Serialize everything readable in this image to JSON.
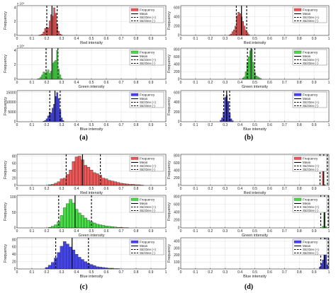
{
  "legend_labels": {
    "freq": "Frequency",
    "mean": "Mean",
    "plus": "Std Dev (+)",
    "minus": "Std Dev (-)"
  },
  "chart_data": [
    {
      "panel": "(a)",
      "type": "bar",
      "title": "",
      "xlabel": "Red intensity",
      "ylabel": "Frequency",
      "color": "#ee5555",
      "xlim": [
        0,
        1
      ],
      "yticks": [
        "0",
        "2",
        "4"
      ],
      "ytick_values": [
        0,
        2,
        4
      ],
      "ylim": [
        0,
        4.3
      ],
      "exponent": "x 10⁴",
      "mean": 0.235,
      "std_minus": 0.2,
      "std_plus": 0.27,
      "bins": [
        [
          0.15,
          0.05
        ],
        [
          0.16,
          0.1
        ],
        [
          0.17,
          0.2
        ],
        [
          0.18,
          0.5
        ],
        [
          0.19,
          1.0
        ],
        [
          0.2,
          1.2
        ],
        [
          0.21,
          1.1
        ],
        [
          0.22,
          2.1
        ],
        [
          0.23,
          3.0
        ],
        [
          0.24,
          2.8
        ],
        [
          0.25,
          4.0
        ],
        [
          0.26,
          3.2
        ],
        [
          0.27,
          1.6
        ],
        [
          0.28,
          0.6
        ],
        [
          0.29,
          0.2
        ],
        [
          0.3,
          0.05
        ]
      ]
    },
    {
      "panel": "(a)",
      "type": "bar",
      "title": "",
      "xlabel": "Green intensity",
      "ylabel": "Frequency",
      "color": "#44dd44",
      "xlim": [
        0,
        1
      ],
      "yticks": [
        "0",
        "2",
        "4"
      ],
      "ytick_values": [
        0,
        2,
        4
      ],
      "ylim": [
        0,
        4.3
      ],
      "exponent": "x 10⁴",
      "mean": 0.235,
      "std_minus": 0.195,
      "std_plus": 0.275,
      "bins": [
        [
          0.14,
          0.05
        ],
        [
          0.15,
          0.1
        ],
        [
          0.16,
          0.3
        ],
        [
          0.17,
          0.6
        ],
        [
          0.18,
          1.0
        ],
        [
          0.19,
          0.9
        ],
        [
          0.2,
          1.0
        ],
        [
          0.21,
          1.3
        ],
        [
          0.22,
          0.8
        ],
        [
          0.23,
          1.1
        ],
        [
          0.24,
          2.2
        ],
        [
          0.25,
          2.4
        ],
        [
          0.26,
          2.6
        ],
        [
          0.27,
          4.0
        ],
        [
          0.28,
          1.4
        ],
        [
          0.29,
          0.6
        ],
        [
          0.3,
          0.1
        ]
      ]
    },
    {
      "panel": "(a)",
      "type": "bar",
      "title": "",
      "xlabel": "Blue intensity",
      "ylabel": "Frequency",
      "color": "#4444ee",
      "xlim": [
        0,
        1
      ],
      "yticks": [
        "0",
        "5000",
        "10000",
        "15000"
      ],
      "ytick_values": [
        0,
        5000,
        10000,
        15000
      ],
      "ylim": [
        0,
        16000
      ],
      "mean": 0.255,
      "std_minus": 0.22,
      "std_plus": 0.29,
      "bins": [
        [
          0.18,
          300
        ],
        [
          0.19,
          600
        ],
        [
          0.2,
          1500
        ],
        [
          0.21,
          3000
        ],
        [
          0.22,
          5000
        ],
        [
          0.23,
          4500
        ],
        [
          0.24,
          7000
        ],
        [
          0.25,
          9000
        ],
        [
          0.26,
          13000
        ],
        [
          0.27,
          15000
        ],
        [
          0.28,
          12000
        ],
        [
          0.29,
          6000
        ],
        [
          0.3,
          2000
        ],
        [
          0.31,
          600
        ]
      ]
    },
    {
      "panel": "(b)",
      "type": "bar",
      "title": "",
      "xlabel": "Red intensity",
      "ylabel": "Frequency",
      "color": "#ee5555",
      "xlim": [
        0,
        1
      ],
      "yticks": [
        "0",
        "200",
        "400",
        "600"
      ],
      "ytick_values": [
        0,
        200,
        400,
        600
      ],
      "ylim": [
        0,
        640
      ],
      "mean": 0.41,
      "std_minus": 0.375,
      "std_plus": 0.445,
      "bins": [
        [
          0.33,
          10
        ],
        [
          0.34,
          30
        ],
        [
          0.35,
          80
        ],
        [
          0.36,
          120
        ],
        [
          0.37,
          200
        ],
        [
          0.38,
          420
        ],
        [
          0.39,
          500
        ],
        [
          0.4,
          470
        ],
        [
          0.41,
          400
        ],
        [
          0.42,
          300
        ],
        [
          0.43,
          200
        ],
        [
          0.44,
          110
        ],
        [
          0.45,
          60
        ],
        [
          0.46,
          20
        ]
      ]
    },
    {
      "panel": "(b)",
      "type": "bar",
      "title": "",
      "xlabel": "Green intensity",
      "ylabel": "Frequency",
      "color": "#44dd44",
      "xlim": [
        0,
        1
      ],
      "yticks": [
        "0",
        "200",
        "400",
        "600",
        "800"
      ],
      "ytick_values": [
        0,
        200,
        400,
        600,
        800
      ],
      "ylim": [
        0,
        830
      ],
      "mean": 0.475,
      "std_minus": 0.45,
      "std_plus": 0.5,
      "bins": [
        [
          0.42,
          30
        ],
        [
          0.43,
          60
        ],
        [
          0.44,
          200
        ],
        [
          0.45,
          450
        ],
        [
          0.46,
          600
        ],
        [
          0.47,
          760
        ],
        [
          0.48,
          800
        ],
        [
          0.49,
          450
        ],
        [
          0.5,
          180
        ],
        [
          0.51,
          90
        ],
        [
          0.52,
          60
        ],
        [
          0.53,
          40
        ],
        [
          0.54,
          20
        ]
      ]
    },
    {
      "panel": "(b)",
      "type": "bar",
      "title": "",
      "xlabel": "Blue intensity",
      "ylabel": "Frequency",
      "color": "#4444ee",
      "xlim": [
        0,
        1
      ],
      "yticks": [
        "0",
        "200",
        "400",
        "600"
      ],
      "ytick_values": [
        0,
        200,
        400,
        600
      ],
      "ylim": [
        0,
        640
      ],
      "mean": 0.31,
      "std_minus": 0.29,
      "std_plus": 0.33,
      "bins": [
        [
          0.27,
          30
        ],
        [
          0.28,
          80
        ],
        [
          0.29,
          200
        ],
        [
          0.3,
          500
        ],
        [
          0.31,
          540
        ],
        [
          0.32,
          420
        ],
        [
          0.33,
          180
        ],
        [
          0.34,
          60
        ],
        [
          0.35,
          20
        ]
      ]
    },
    {
      "panel": "(c)",
      "type": "bar",
      "title": "",
      "xlabel": "Red intensity",
      "ylabel": "Frequency",
      "color": "#ee5555",
      "xlim": [
        0,
        1
      ],
      "yticks": [
        "0",
        "20",
        "40",
        "60",
        "80"
      ],
      "ytick_values": [
        0,
        20,
        40,
        60,
        80
      ],
      "ylim": [
        0,
        85
      ],
      "mean": 0.44,
      "std_minus": 0.33,
      "std_plus": 0.56,
      "bins": [
        [
          0.22,
          2
        ],
        [
          0.24,
          3
        ],
        [
          0.26,
          6
        ],
        [
          0.28,
          10
        ],
        [
          0.3,
          18
        ],
        [
          0.32,
          20
        ],
        [
          0.34,
          30
        ],
        [
          0.36,
          42
        ],
        [
          0.38,
          65
        ],
        [
          0.4,
          78
        ],
        [
          0.42,
          80
        ],
        [
          0.44,
          70
        ],
        [
          0.46,
          55
        ],
        [
          0.48,
          50
        ],
        [
          0.5,
          42
        ],
        [
          0.52,
          35
        ],
        [
          0.54,
          32
        ],
        [
          0.56,
          28
        ],
        [
          0.58,
          20
        ],
        [
          0.6,
          18
        ],
        [
          0.62,
          14
        ],
        [
          0.64,
          12
        ],
        [
          0.66,
          10
        ],
        [
          0.68,
          8
        ],
        [
          0.7,
          6
        ],
        [
          0.72,
          5
        ],
        [
          0.74,
          4
        ],
        [
          0.76,
          3
        ],
        [
          0.78,
          3
        ],
        [
          0.8,
          2
        ],
        [
          0.82,
          2
        ],
        [
          0.84,
          1
        ]
      ]
    },
    {
      "panel": "(c)",
      "type": "bar",
      "title": "",
      "xlabel": "Green intensity",
      "ylabel": "Frequency",
      "color": "#44dd44",
      "xlim": [
        0,
        1
      ],
      "yticks": [
        "0",
        "50",
        "100"
      ],
      "ytick_values": [
        0,
        50,
        100
      ],
      "ylim": [
        0,
        105
      ],
      "mean": 0.39,
      "std_minus": 0.28,
      "std_plus": 0.5,
      "bins": [
        [
          0.22,
          2
        ],
        [
          0.24,
          5
        ],
        [
          0.26,
          10
        ],
        [
          0.28,
          20
        ],
        [
          0.3,
          40
        ],
        [
          0.32,
          65
        ],
        [
          0.34,
          78
        ],
        [
          0.36,
          92
        ],
        [
          0.38,
          80
        ],
        [
          0.4,
          60
        ],
        [
          0.42,
          48
        ],
        [
          0.44,
          40
        ],
        [
          0.46,
          32
        ],
        [
          0.48,
          25
        ],
        [
          0.5,
          20
        ],
        [
          0.52,
          16
        ],
        [
          0.54,
          12
        ],
        [
          0.56,
          10
        ],
        [
          0.58,
          8
        ],
        [
          0.6,
          6
        ],
        [
          0.62,
          5
        ],
        [
          0.64,
          4
        ],
        [
          0.66,
          3
        ],
        [
          0.68,
          2
        ],
        [
          0.7,
          2
        ],
        [
          0.72,
          1
        ],
        [
          0.74,
          1
        ]
      ]
    },
    {
      "panel": "(c)",
      "type": "bar",
      "title": "",
      "xlabel": "Blue intensity",
      "ylabel": "Frequency",
      "color": "#4444ee",
      "xlim": [
        0,
        1
      ],
      "yticks": [
        "0",
        "20",
        "40",
        "60",
        "80"
      ],
      "ytick_values": [
        0,
        20,
        40,
        60,
        80
      ],
      "ylim": [
        0,
        85
      ],
      "mean": 0.37,
      "std_minus": 0.26,
      "std_plus": 0.48,
      "bins": [
        [
          0.2,
          4
        ],
        [
          0.22,
          10
        ],
        [
          0.24,
          18
        ],
        [
          0.26,
          30
        ],
        [
          0.28,
          45
        ],
        [
          0.3,
          62
        ],
        [
          0.32,
          75
        ],
        [
          0.34,
          68
        ],
        [
          0.36,
          60
        ],
        [
          0.38,
          52
        ],
        [
          0.4,
          40
        ],
        [
          0.42,
          32
        ],
        [
          0.44,
          26
        ],
        [
          0.46,
          20
        ],
        [
          0.48,
          15
        ],
        [
          0.5,
          12
        ],
        [
          0.52,
          9
        ],
        [
          0.54,
          6
        ],
        [
          0.56,
          5
        ],
        [
          0.58,
          4
        ],
        [
          0.6,
          3
        ],
        [
          0.62,
          2
        ],
        [
          0.64,
          2
        ],
        [
          0.66,
          1
        ],
        [
          0.68,
          1
        ]
      ]
    },
    {
      "panel": "(d)",
      "type": "bar",
      "title": "",
      "xlabel": "Red intensity",
      "ylabel": "Frequency",
      "color": "#ee5555",
      "xlim": [
        0,
        1
      ],
      "yticks": [
        "0",
        "200",
        "400",
        "600",
        "800"
      ],
      "ytick_values": [
        0,
        200,
        400,
        600,
        800
      ],
      "ylim": [
        0,
        830
      ],
      "mean": 0.965,
      "std_minus": 0.94,
      "std_plus": 0.99,
      "bins": [
        [
          0.96,
          650
        ],
        [
          0.97,
          20
        ]
      ]
    },
    {
      "panel": "(d)",
      "type": "bar",
      "title": "",
      "xlabel": "Green intensity",
      "ylabel": "Frequency",
      "color": "#44dd44",
      "xlim": [
        0,
        1
      ],
      "yticks": [
        "0",
        "200",
        "400",
        "600",
        "800"
      ],
      "ytick_values": [
        0,
        200,
        400,
        600,
        800
      ],
      "ylim": [
        0,
        830
      ],
      "mean": 0.97,
      "std_minus": 0.945,
      "std_plus": 0.995,
      "bins": [
        [
          0.96,
          40
        ],
        [
          0.97,
          720
        ],
        [
          0.98,
          30
        ]
      ]
    },
    {
      "panel": "(d)",
      "type": "bar",
      "title": "",
      "xlabel": "Blue intensity",
      "ylabel": "Frequency",
      "color": "#4444ee",
      "xlim": [
        0,
        1
      ],
      "yticks": [
        "0",
        "100",
        "200",
        "300",
        "400"
      ],
      "ytick_values": [
        0,
        100,
        200,
        300,
        400
      ],
      "ylim": [
        0,
        450
      ],
      "mean": 0.97,
      "std_minus": 0.945,
      "std_plus": 0.995,
      "bins": [
        [
          0.94,
          30
        ],
        [
          0.95,
          80
        ],
        [
          0.96,
          130
        ],
        [
          0.97,
          420
        ],
        [
          0.98,
          440
        ],
        [
          0.99,
          60
        ]
      ]
    }
  ],
  "panel_labels": [
    "(a)",
    "(b)",
    "(c)",
    "(d)"
  ],
  "xticks": [
    "0",
    "0.1",
    "0.2",
    "0.3",
    "0.4",
    "0.5",
    "0.6",
    "0.7",
    "0.8",
    "0.9",
    "1"
  ]
}
